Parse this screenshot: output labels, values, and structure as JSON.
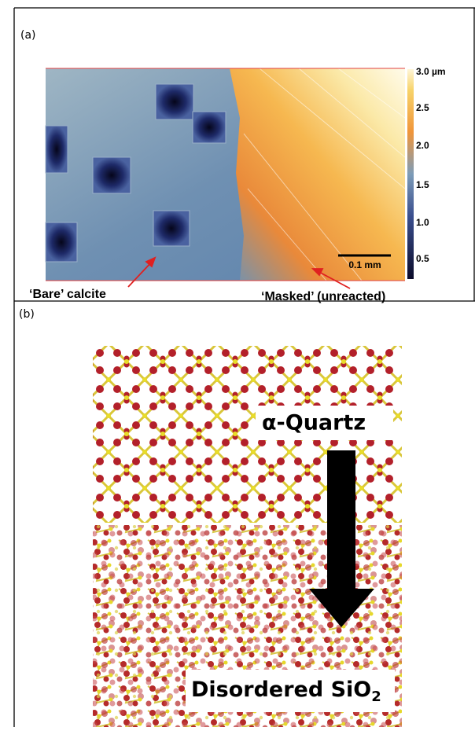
{
  "panel_a": {
    "label": "(a)",
    "colorbar": [
      "3.0 µm",
      "2.5",
      "2.0",
      "1.5",
      "1.0",
      "0.5"
    ],
    "scale_bar": "0.1 mm",
    "annotations": [
      "‘Bare’ calcite",
      "‘Masked’ (unreacted)"
    ]
  },
  "panel_b": {
    "label": "(b)",
    "labels": [
      "α-Quartz",
      {
        "text": "Disordered SiO",
        "subscript": "2"
      }
    ]
  }
}
